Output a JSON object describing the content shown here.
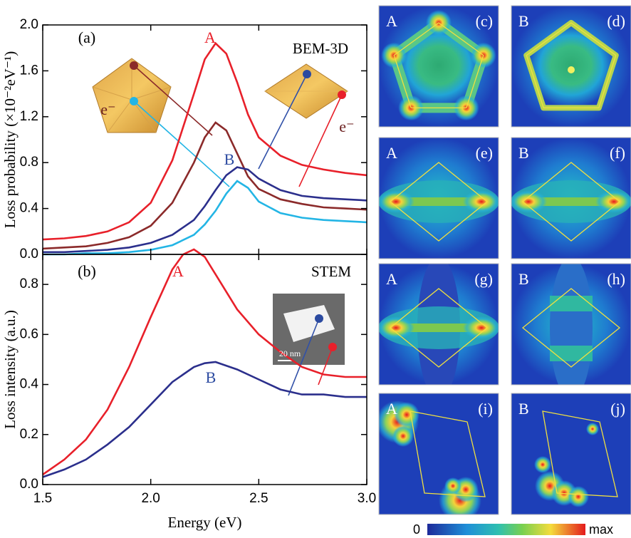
{
  "chart_data": [
    {
      "type": "line",
      "y_label": "Loss probability (×10⁻²eV⁻¹)",
      "xlim": [
        1.5,
        3.0
      ],
      "ylim": [
        0,
        2.0
      ],
      "yticks": [
        {
          "value": 0,
          "label": "0.0"
        },
        0.4,
        0.8,
        1.2,
        1.6,
        {
          "value": 2,
          "label": "2.0"
        }
      ],
      "x": [
        1.5,
        1.6,
        1.7,
        1.8,
        1.9,
        2.0,
        2.1,
        2.2,
        2.25,
        2.3,
        2.35,
        2.4,
        2.45,
        2.5,
        2.6,
        2.7,
        2.8,
        2.9,
        3.0
      ],
      "series": [
        {
          "name": "A",
          "color": "#e8202a",
          "values": [
            0.13,
            0.14,
            0.16,
            0.2,
            0.28,
            0.45,
            0.82,
            1.4,
            1.7,
            1.84,
            1.75,
            1.5,
            1.22,
            1.02,
            0.86,
            0.78,
            0.74,
            0.71,
            0.69
          ]
        },
        {
          "color": "#8b2a2a",
          "values": [
            0.05,
            0.06,
            0.07,
            0.1,
            0.15,
            0.25,
            0.45,
            0.8,
            1.02,
            1.15,
            1.08,
            0.88,
            0.68,
            0.57,
            0.48,
            0.44,
            0.41,
            0.4,
            0.39
          ]
        },
        {
          "name": "B",
          "color": "#2b2f8c",
          "values": [
            0.02,
            0.02,
            0.03,
            0.04,
            0.06,
            0.1,
            0.17,
            0.3,
            0.42,
            0.56,
            0.69,
            0.76,
            0.74,
            0.66,
            0.56,
            0.51,
            0.49,
            0.48,
            0.47
          ]
        },
        {
          "color": "#23b5e5",
          "values": [
            0.0,
            0.0,
            0.01,
            0.01,
            0.02,
            0.04,
            0.08,
            0.17,
            0.26,
            0.38,
            0.53,
            0.64,
            0.58,
            0.46,
            0.36,
            0.32,
            0.3,
            0.29,
            0.28
          ]
        }
      ],
      "annotations": [
        {
          "text": "(a)",
          "color": "#000000"
        },
        {
          "text": "A",
          "color": "#e8202a"
        },
        {
          "text": "B",
          "color": "#2b4aa0"
        },
        {
          "text": "BEM-3D",
          "color": "#000000"
        },
        {
          "text": "e⁻",
          "color": "#6b1f1f"
        },
        {
          "text": "e⁻",
          "color": "#6b1f1f"
        }
      ]
    },
    {
      "type": "line",
      "y_label": "Loss intensity (a.u.)",
      "x_label": "Energy (eV)",
      "xlim": [
        1.5,
        3.0
      ],
      "ylim": [
        0,
        0.92
      ],
      "xticks": [
        1.5,
        {
          "value": 2,
          "label": "2.0"
        },
        2.5,
        {
          "value": 3,
          "label": "3.0"
        }
      ],
      "yticks": [
        {
          "value": 0,
          "label": "0.0"
        },
        0.2,
        0.4,
        0.6,
        0.8
      ],
      "x": [
        1.5,
        1.6,
        1.7,
        1.8,
        1.9,
        2.0,
        2.1,
        2.15,
        2.2,
        2.25,
        2.3,
        2.4,
        2.5,
        2.6,
        2.7,
        2.8,
        2.9,
        3.0
      ],
      "series": [
        {
          "name": "A",
          "color": "#e8202a",
          "values": [
            0.04,
            0.1,
            0.18,
            0.3,
            0.47,
            0.67,
            0.86,
            0.92,
            0.94,
            0.91,
            0.84,
            0.7,
            0.6,
            0.53,
            0.47,
            0.44,
            0.43,
            0.43
          ]
        },
        {
          "name": "B",
          "color": "#2b2f8c",
          "values": [
            0.03,
            0.06,
            0.1,
            0.16,
            0.23,
            0.32,
            0.41,
            0.44,
            0.47,
            0.485,
            0.49,
            0.46,
            0.42,
            0.38,
            0.36,
            0.36,
            0.35,
            0.35
          ]
        }
      ],
      "annotations": [
        {
          "text": "(b)",
          "color": "#000000"
        },
        {
          "text": "A",
          "color": "#e8202a"
        },
        {
          "text": "B",
          "color": "#2b4aa0"
        },
        {
          "text": "STEM",
          "color": "#000000"
        },
        {
          "text": "20 nm",
          "color": "#ffffff"
        }
      ]
    }
  ],
  "maps": {
    "panels": [
      {
        "mode": "A",
        "label": "(c)"
      },
      {
        "mode": "B",
        "label": "(d)"
      },
      {
        "mode": "A",
        "label": "(e)"
      },
      {
        "mode": "B",
        "label": "(f)"
      },
      {
        "mode": "A",
        "label": "(g)"
      },
      {
        "mode": "B",
        "label": "(h)"
      },
      {
        "mode": "A",
        "label": "(i)"
      },
      {
        "mode": "B",
        "label": "(j)"
      }
    ],
    "colorbar": {
      "min_label": "0",
      "max_label": "max"
    }
  }
}
